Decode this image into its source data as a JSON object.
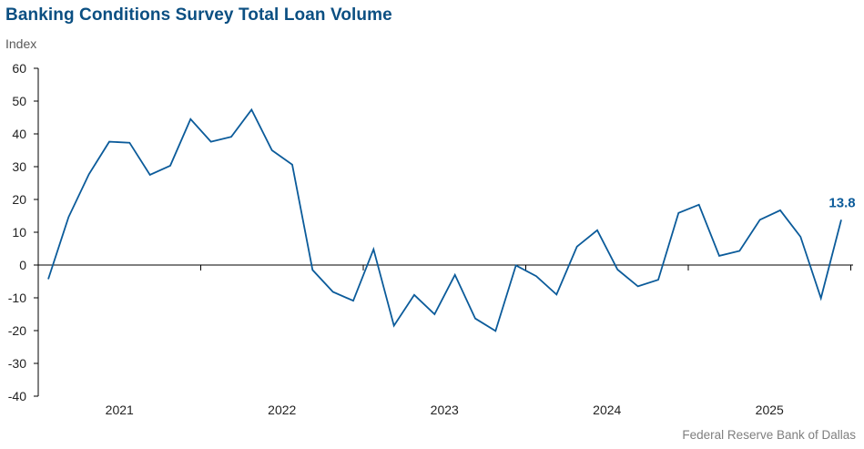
{
  "chart_data": {
    "type": "line",
    "title": "Banking Conditions Survey Total Loan Volume",
    "ylabel": "Index",
    "xlabel": "",
    "source": "Federal Reserve Bank of Dallas",
    "ylim": [
      -40,
      60
    ],
    "yticks": [
      60,
      50,
      40,
      30,
      20,
      10,
      0,
      -10,
      -20,
      -30,
      -40
    ],
    "xtick_labels": [
      "2021",
      "2022",
      "2023",
      "2024",
      "2025"
    ],
    "grid": false,
    "legend": "none",
    "line_color": "#0b5b9a",
    "end_label": "13.8",
    "series": [
      {
        "values": [
          -4.3,
          14.6,
          27.7,
          37.6,
          37.3,
          27.5,
          30.3,
          44.5,
          37.6,
          39.1,
          47.4,
          35.0,
          30.6,
          -1.5,
          -8.2,
          -10.9,
          4.8,
          -18.5,
          -9.1,
          -15.0,
          -3.0,
          -16.3,
          -20.1,
          -0.1,
          -3.4,
          -9.0,
          5.6,
          10.6,
          -1.4,
          -6.5,
          -4.5,
          15.9,
          18.4,
          2.8,
          4.3,
          13.8,
          16.7,
          8.6,
          -10.1,
          13.8
        ]
      }
    ]
  }
}
